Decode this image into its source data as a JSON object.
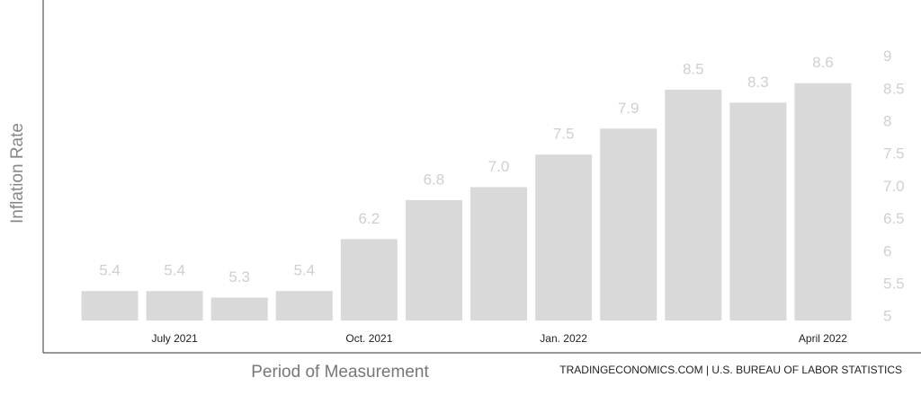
{
  "chart_data": {
    "type": "bar",
    "y_axis_label": "Inflation Rate",
    "x_axis_label": "Period of Measurement",
    "source": "TRADINGECONOMICS.COM | U.S. BUREAU OF LABOR STATISTICS",
    "categories": [
      null,
      "July 2021",
      null,
      null,
      "Oct. 2021",
      null,
      null,
      "Jan. 2022",
      null,
      null,
      null,
      "April 2022"
    ],
    "values": [
      5.4,
      5.4,
      5.3,
      5.4,
      6.2,
      6.8,
      7.0,
      7.5,
      7.9,
      8.5,
      8.3,
      8.6
    ],
    "value_labels": [
      "5.4",
      "5.4",
      "5.3",
      "5.4",
      "6.2",
      "6.8",
      "7.0",
      "7.5",
      "7.9",
      "8.5",
      "8.3",
      "8.6"
    ],
    "color": "#d9d9d9",
    "ylim": [
      4.45,
      9.88
    ],
    "yticks": [
      5,
      5.5,
      6,
      6.5,
      {
        "value": 7,
        "label": "7.0"
      },
      7.5,
      8,
      8.5,
      9
    ]
  }
}
